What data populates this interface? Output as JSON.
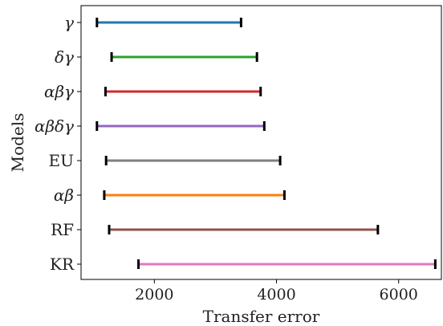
{
  "chart_data": {
    "type": "range",
    "xlabel": "Transfer error",
    "ylabel": "Models",
    "xlim": [
      800,
      6700
    ],
    "xticks": [
      2000,
      4000,
      6000
    ],
    "grid": false,
    "legend": "none",
    "series": [
      {
        "name": "γ",
        "low": 1060,
        "high": 3420,
        "color": "#1f77b4"
      },
      {
        "name": "δγ",
        "low": 1300,
        "high": 3680,
        "color": "#2ca02c"
      },
      {
        "name": "αβγ",
        "low": 1200,
        "high": 3740,
        "color": "#d62728"
      },
      {
        "name": "αβδγ",
        "low": 1060,
        "high": 3800,
        "color": "#9467bd"
      },
      {
        "name": "EU",
        "low": 1210,
        "high": 4060,
        "color": "#7f7f7f"
      },
      {
        "name": "αβ",
        "low": 1180,
        "high": 4130,
        "color": "#ff7f0e"
      },
      {
        "name": "RF",
        "low": 1260,
        "high": 5660,
        "color": "#8c564b"
      },
      {
        "name": "KR",
        "low": 1740,
        "high": 6600,
        "color": "#e377c2"
      }
    ]
  }
}
